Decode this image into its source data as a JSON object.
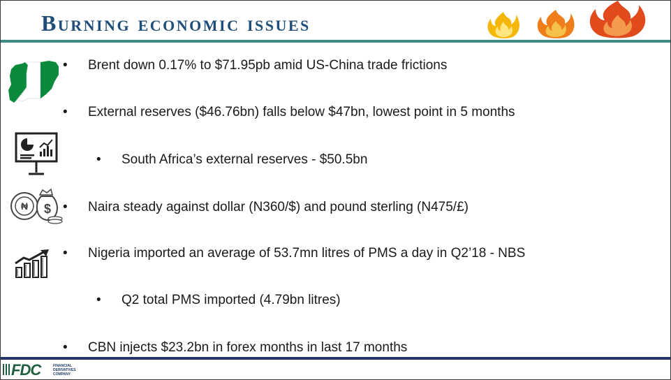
{
  "header": {
    "title": "Burning economic issues"
  },
  "bullets": [
    {
      "text": "Brent down 0.17% to $71.95pb amid US-China trade frictions",
      "level": 1
    },
    {
      "text": "External reserves ($46.76bn) falls below $47bn, lowest point in 5 months",
      "level": 1
    },
    {
      "text": "South Africa’s external reserves - $50.5bn",
      "level": 2
    },
    {
      "text": "Naira steady against dollar (N360/$) and pound sterling (N475/£)",
      "level": 1
    },
    {
      "text": "Nigeria imported an average of 53.7mn litres of PMS a day in Q2’18 - NBS",
      "level": 1
    },
    {
      "text": "Q2 total PMS imported (4.79bn litres)",
      "level": 2
    },
    {
      "text": "CBN injects $23.2bn in forex months in last 17 months",
      "level": 1
    }
  ],
  "bullet_glyph": "•",
  "footer": {
    "logo_text": "FDC",
    "logo_subtext": "FINANCIAL DERIVATIVES COMPANY"
  },
  "icons": [
    "nigeria-map-icon",
    "presentation-board-icon",
    "coins-money-bag-icon",
    "growth-chart-icon",
    "flame-icon"
  ],
  "colors": {
    "title": "#1f4e79",
    "title_rule": "#3c8c87",
    "bottom_rule": "#24366c",
    "nigeria_green": "#0a8a3a",
    "flame_yellow": "#f5b80a",
    "flame_orange": "#ef7d1a",
    "flame_red": "#e04a1c"
  }
}
